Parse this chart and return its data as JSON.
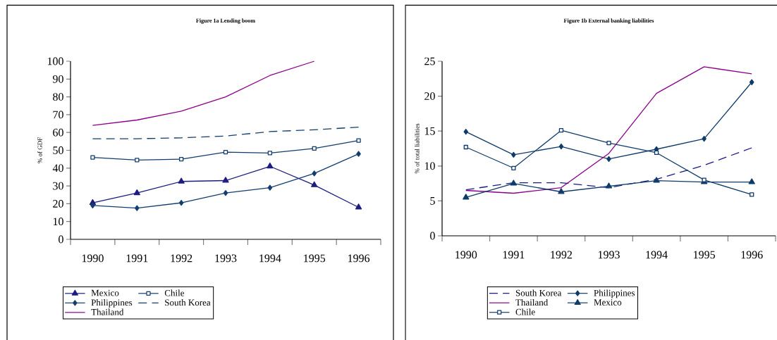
{
  "chart_data": [
    {
      "type": "line",
      "title": "Figure 1a Lending boom",
      "ylabel": "% of GDF",
      "categories": [
        "1990",
        "1991",
        "1992",
        "1993",
        "1994",
        "1995",
        "1996"
      ],
      "ylim": [
        0,
        100
      ],
      "yticks": [
        0,
        10,
        20,
        30,
        40,
        50,
        60,
        70,
        80,
        90,
        100
      ],
      "legend": "bottom",
      "series": [
        {
          "name": "Mexico",
          "color": "#1c1c80",
          "marker": "triangle",
          "line_style": "solid",
          "values": [
            20.5,
            26,
            32.5,
            33,
            41,
            30.5,
            18
          ]
        },
        {
          "name": "Chile",
          "color": "#123d6e",
          "marker": "square",
          "line_style": "solid",
          "values": [
            46,
            44.5,
            45,
            49,
            48.5,
            51,
            55.5
          ]
        },
        {
          "name": "Philippines",
          "color": "#123d6e",
          "marker": "diamond",
          "line_style": "solid",
          "values": [
            19,
            17.5,
            20.5,
            26,
            29,
            37,
            48
          ]
        },
        {
          "name": "South Korea",
          "color": "#123d6e",
          "marker": "none",
          "line_style": "dashed",
          "values": [
            56.5,
            56.5,
            57,
            58,
            60.5,
            61.5,
            63
          ]
        },
        {
          "name": "Thailand",
          "color": "#8b008b",
          "marker": "none",
          "line_style": "solid",
          "values": [
            64,
            67,
            72,
            80,
            92,
            100,
            null
          ]
        }
      ]
    },
    {
      "type": "line",
      "title": "Figure 1b External banking liabilities",
      "ylabel": "% of total liabilities",
      "categories": [
        "1990",
        "1991",
        "1992",
        "1993",
        "1994",
        "1995",
        "1996"
      ],
      "ylim": [
        0,
        25
      ],
      "yticks": [
        0,
        5,
        10,
        15,
        20,
        25
      ],
      "legend": "bottom",
      "series": [
        {
          "name": "South Korea",
          "color": "#1a1a8c",
          "marker": "none",
          "line_style": "dashed",
          "values": [
            6.6,
            7.6,
            7.6,
            6.9,
            8.1,
            10.1,
            12.6
          ]
        },
        {
          "name": "Philippines",
          "color": "#0f3b6b",
          "marker": "diamond",
          "line_style": "solid",
          "values": [
            14.9,
            11.6,
            12.8,
            11.0,
            12.4,
            13.9,
            22.0
          ]
        },
        {
          "name": "Thailand",
          "color": "#8b008b",
          "marker": "none",
          "line_style": "solid",
          "values": [
            6.5,
            6.1,
            6.9,
            11.8,
            20.4,
            24.2,
            23.2
          ]
        },
        {
          "name": "Mexico",
          "color": "#0f3b6b",
          "marker": "triangle",
          "line_style": "solid",
          "values": [
            5.5,
            7.5,
            6.3,
            7.1,
            7.9,
            7.7,
            7.7
          ]
        },
        {
          "name": "Chile",
          "color": "#0f3b6b",
          "marker": "square",
          "line_style": "solid",
          "values": [
            12.7,
            9.7,
            15.1,
            13.3,
            11.9,
            8.0,
            5.9
          ]
        }
      ]
    }
  ]
}
